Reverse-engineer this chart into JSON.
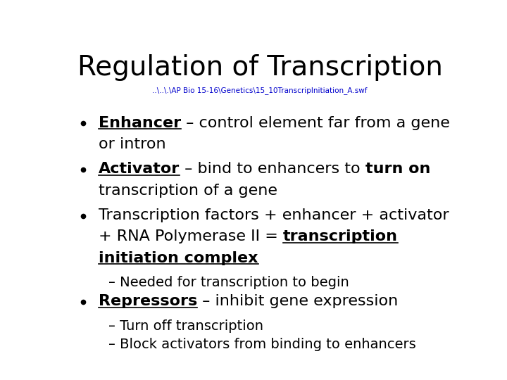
{
  "title": "Regulation of Transcription",
  "subtitle": "..\\..\\.\\AP Bio 15-16\\Genetics\\15_10TranscripInitiation_A.swf",
  "subtitle_color": "#0000CC",
  "bg_color": "#ffffff",
  "text_color": "#000000",
  "title_fontsize": 28,
  "subtitle_fontsize": 7.5,
  "body_fontsize": 16,
  "sub_fontsize": 14,
  "lines": [
    {
      "is_bullet": true,
      "rows": [
        [
          {
            "text": "Enhancer",
            "bold": true,
            "underline": true
          },
          {
            "text": " – control element far from a gene",
            "bold": false,
            "underline": false
          }
        ],
        [
          {
            "text": "or intron",
            "bold": false,
            "underline": false
          }
        ]
      ]
    },
    {
      "is_bullet": true,
      "rows": [
        [
          {
            "text": "Activator",
            "bold": true,
            "underline": true
          },
          {
            "text": " – bind to enhancers to ",
            "bold": false,
            "underline": false
          },
          {
            "text": "turn on",
            "bold": true,
            "underline": false
          }
        ],
        [
          {
            "text": "transcription of a gene",
            "bold": false,
            "underline": false
          }
        ]
      ]
    },
    {
      "is_bullet": true,
      "rows": [
        [
          {
            "text": "Transcription factors + enhancer + activator",
            "bold": false,
            "underline": false
          }
        ],
        [
          {
            "text": "+ RNA Polymerase II = ",
            "bold": false,
            "underline": false
          },
          {
            "text": "transcription",
            "bold": true,
            "underline": true
          }
        ],
        [
          {
            "text": "initiation complex",
            "bold": true,
            "underline": true
          }
        ]
      ]
    },
    {
      "is_bullet": false,
      "is_sub": true,
      "rows": [
        [
          {
            "text": "– Needed for transcription to begin",
            "bold": false,
            "underline": false
          }
        ]
      ]
    },
    {
      "is_bullet": true,
      "rows": [
        [
          {
            "text": "Repressors",
            "bold": true,
            "underline": true
          },
          {
            "text": " – inhibit gene expression",
            "bold": false,
            "underline": false
          }
        ]
      ]
    },
    {
      "is_bullet": false,
      "is_sub": true,
      "rows": [
        [
          {
            "text": "– Turn off transcription",
            "bold": false,
            "underline": false
          }
        ]
      ]
    },
    {
      "is_bullet": false,
      "is_sub": true,
      "rows": [
        [
          {
            "text": "– Block activators from binding to enhancers",
            "bold": false,
            "underline": false
          }
        ]
      ]
    }
  ]
}
